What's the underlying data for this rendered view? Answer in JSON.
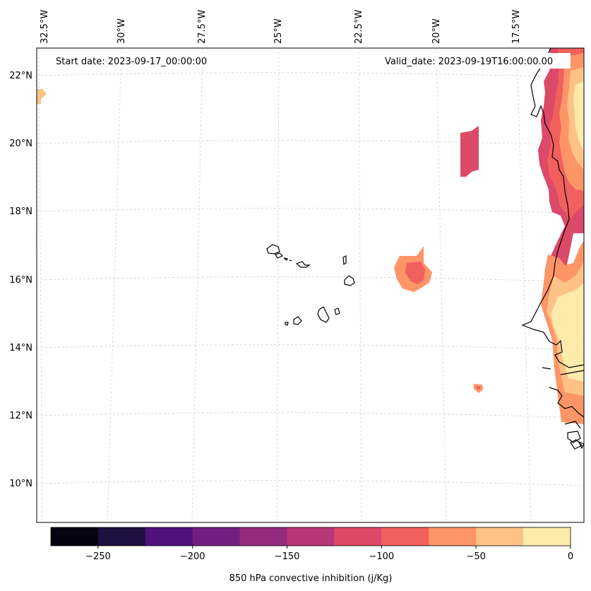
{
  "header": {
    "start_label": "Start date: 2023-09-17_00:00:00",
    "valid_label": "Valid_date: 2023-09-19T16:00:00.00"
  },
  "lon_labels": [
    "32.5°W",
    "30°W",
    "27.5°W",
    "25°W",
    "22.5°W",
    "20°W",
    "17.5°W"
  ],
  "lat_labels": [
    "22°N",
    "20°N",
    "18°N",
    "16°N",
    "14°N",
    "12°N",
    "10°N"
  ],
  "colorbar": {
    "label": "850 hPa convective inhibition (j/Kg)",
    "bounds": [
      -275,
      -250,
      -225,
      -200,
      -175,
      -150,
      -125,
      -100,
      -75,
      -50,
      -25,
      0
    ],
    "tick_values": [
      -250,
      -200,
      -150,
      -100,
      -50,
      0
    ],
    "tick_labels": [
      "−250",
      "−200",
      "−150",
      "−100",
      "−50",
      "0"
    ],
    "colors": [
      "#05030f",
      "#201041",
      "#4f127b",
      "#721f81",
      "#932b80",
      "#b73779",
      "#dd4968",
      "#f1605d",
      "#fd9567",
      "#fec287",
      "#fcebaa"
    ]
  },
  "chart_data": {
    "type": "filled-contour map",
    "variable": "850 hPa convective inhibition",
    "units": "j/Kg",
    "region": {
      "lon_range": [
        -32.5,
        -15.5
      ],
      "lat_range": [
        9,
        22.5
      ]
    },
    "levels": [
      -275,
      -250,
      -225,
      -200,
      -175,
      -150,
      -125,
      -100,
      -75,
      -50,
      -25,
      0
    ],
    "features": [
      {
        "area": "Mauritanian/Senegalese coast",
        "range": [
          -125,
          0
        ]
      },
      {
        "area": "offshore ~20°N 20.5°W",
        "range": [
          -125,
          -100
        ]
      },
      {
        "area": "offshore ~16°N 21.5°W",
        "range": [
          -100,
          -50
        ]
      },
      {
        "area": "small patch ~12.8°N 19.5°W",
        "range": [
          -100,
          -50
        ]
      },
      {
        "area": "edge patch ~21.5°N 32.5°W",
        "range": [
          -50,
          -25
        ]
      }
    ]
  }
}
